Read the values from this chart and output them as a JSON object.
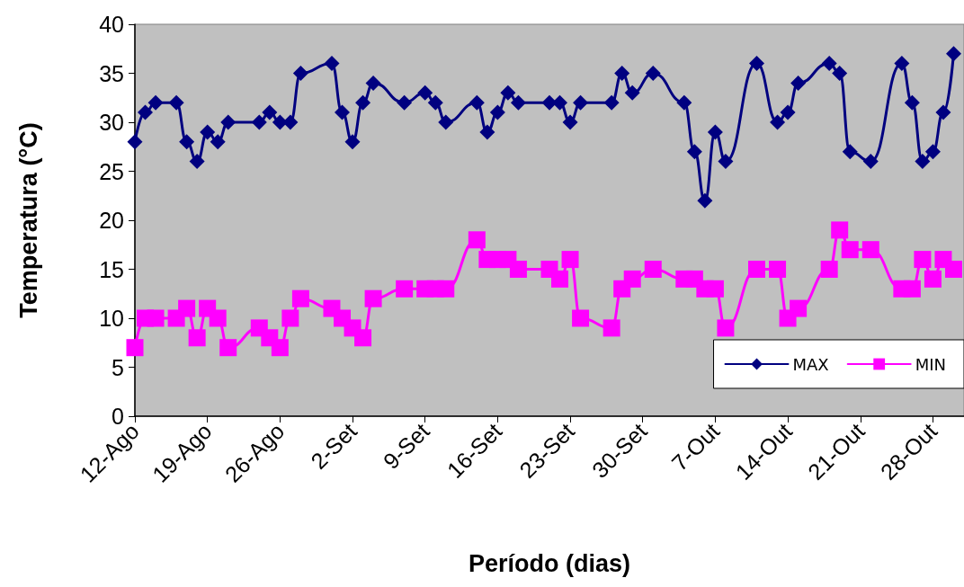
{
  "chart_data": {
    "type": "line",
    "xlabel": "Período (dias)",
    "ylabel": "Temperatura (°C)",
    "x": [
      "--08-12",
      "--08-13",
      "--08-14",
      "--08-16",
      "--08-17",
      "--08-18",
      "--08-19",
      "--08-20",
      "--08-21",
      "--08-24",
      "--08-25",
      "--08-26",
      "--08-27",
      "--08-28",
      "--08-31",
      "--09-01",
      "--09-02",
      "--09-03",
      "--09-04",
      "--09-07",
      "--09-09",
      "--09-10",
      "--09-11",
      "--09-14",
      "--09-15",
      "--09-16",
      "--09-17",
      "--09-18",
      "--09-21",
      "--09-22",
      "--09-23",
      "--09-24",
      "--09-27",
      "--09-28",
      "--09-29",
      "--10-01",
      "--10-04",
      "--10-05",
      "--10-06",
      "--10-07",
      "--10-08",
      "--10-11",
      "--10-13",
      "--10-14",
      "--10-15",
      "--10-18",
      "--10-19",
      "--10-20",
      "--10-22",
      "--10-25",
      "--10-26",
      "--10-27",
      "--10-28",
      "--10-29",
      "--10-30"
    ],
    "series": [
      {
        "name": "MAX",
        "color": "#000080",
        "marker": "diamond",
        "values": [
          28,
          31,
          32,
          32,
          28,
          26,
          29,
          28,
          30,
          30,
          31,
          30,
          30,
          35,
          36,
          31,
          28,
          32,
          34,
          32,
          33,
          32,
          30,
          32,
          29,
          31,
          33,
          32,
          32,
          32,
          30,
          32,
          32,
          35,
          33,
          35,
          32,
          27,
          22,
          29,
          26,
          36,
          30,
          31,
          34,
          36,
          35,
          27,
          26,
          36,
          32,
          26,
          27,
          31,
          37
        ]
      },
      {
        "name": "MIN",
        "color": "#ff00ff",
        "marker": "square",
        "values": [
          7,
          10,
          10,
          10,
          11,
          8,
          11,
          10,
          7,
          9,
          8,
          7,
          10,
          12,
          11,
          10,
          9,
          8,
          12,
          13,
          13,
          13,
          13,
          18,
          16,
          16,
          16,
          15,
          15,
          14,
          16,
          10,
          9,
          13,
          14,
          15,
          14,
          14,
          13,
          13,
          9,
          15,
          15,
          10,
          11,
          15,
          19,
          17,
          17,
          13,
          13,
          16,
          14,
          16,
          15
        ]
      }
    ],
    "xlim": [
      "--08-12",
      "--10-31"
    ],
    "xticks": [
      {
        "value": "--08-12",
        "label": "12-Ago"
      },
      {
        "value": "--08-19",
        "label": "19-Ago"
      },
      {
        "value": "--08-26",
        "label": "26-Ago"
      },
      {
        "value": "--09-02",
        "label": "2-Set"
      },
      {
        "value": "--09-09",
        "label": "9-Set"
      },
      {
        "value": "--09-16",
        "label": "16-Set"
      },
      {
        "value": "--09-23",
        "label": "23-Set"
      },
      {
        "value": "--09-30",
        "label": "30-Set"
      },
      {
        "value": "--10-07",
        "label": "7-Out"
      },
      {
        "value": "--10-14",
        "label": "14-Out"
      },
      {
        "value": "--10-21",
        "label": "21-Out"
      },
      {
        "value": "--10-28",
        "label": "28-Out"
      }
    ],
    "ylim": [
      0,
      40
    ],
    "yticks": [
      0,
      5,
      10,
      15,
      20,
      25,
      30,
      35,
      40
    ],
    "legend": "bottom right",
    "line_style": "solid"
  }
}
